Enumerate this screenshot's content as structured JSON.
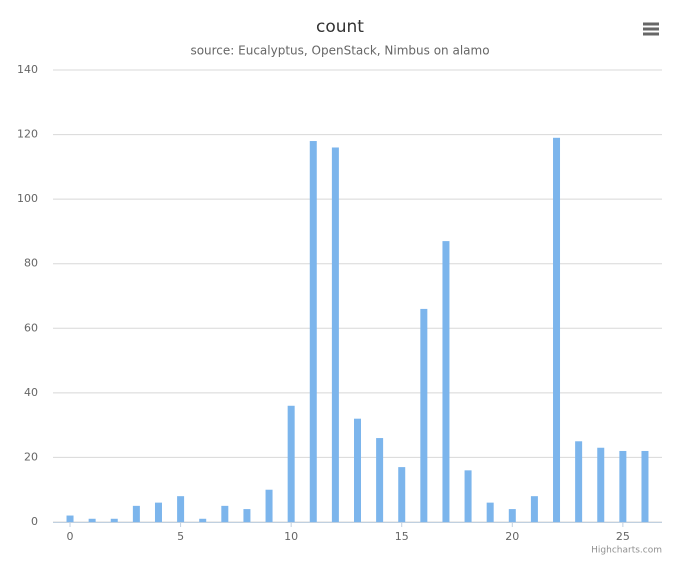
{
  "chart_data": {
    "type": "bar",
    "title": "count",
    "subtitle": "source: Eucalyptus, OpenStack, Nimbus on alamo",
    "x": [
      0,
      1,
      2,
      3,
      4,
      5,
      6,
      7,
      8,
      9,
      10,
      11,
      12,
      13,
      14,
      15,
      16,
      17,
      18,
      19,
      20,
      21,
      22,
      23,
      24,
      25,
      26
    ],
    "values": [
      2,
      1,
      1,
      5,
      6,
      8,
      1,
      5,
      4,
      10,
      36,
      118,
      116,
      32,
      26,
      17,
      66,
      87,
      16,
      6,
      4,
      8,
      119,
      25,
      23,
      22,
      22
    ],
    "color": "#7cb5ec",
    "xlim": [
      -0.77,
      26.77
    ],
    "xticks": [
      0,
      5,
      10,
      15,
      20,
      25
    ],
    "ylim": [
      0,
      140
    ],
    "yticks": [
      0,
      20,
      40,
      60,
      80,
      100,
      120,
      140
    ],
    "grid": true,
    "credits": "Highcharts.com"
  }
}
